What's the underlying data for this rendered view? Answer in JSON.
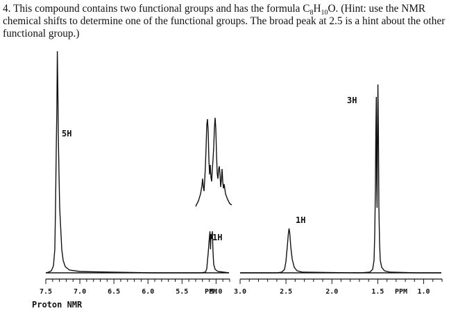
{
  "question": {
    "number": "4.",
    "text_before": "This compound contains two functional groups and has the formula C",
    "sub1": "8",
    "text_mid": "H",
    "sub2": "10",
    "text_after": "O.  (Hint: use the NMR chemical shifts to determine one of the functional groups.  The broad peak at 2.5 is a hint about the other functional group.)"
  },
  "chart_data": [
    {
      "type": "line",
      "panel": "left",
      "xlim": [
        7.5,
        4.8
      ],
      "x_ticks": [
        {
          "x": 7.5,
          "label": "7.5"
        },
        {
          "x": 7.0,
          "label": "7.0"
        },
        {
          "x": 6.5,
          "label": "6.5"
        },
        {
          "x": 6.0,
          "label": "6.0"
        },
        {
          "x": 5.5,
          "label": "5.5"
        },
        {
          "x": 5.0,
          "label": "5.0"
        }
      ],
      "axis_unit": "PPM",
      "caption": "Proton NMR",
      "peaks": [
        {
          "shift": 7.25,
          "integration": "5H"
        },
        {
          "shift": 4.9,
          "integration": "1H"
        }
      ],
      "inset": "expanded multiplet of the 1H signal near 4.9 ppm"
    },
    {
      "type": "line",
      "panel": "right",
      "xlim": [
        3.0,
        0.8
      ],
      "x_ticks": [
        {
          "x": 3.0,
          "label": "3.0"
        },
        {
          "x": 2.5,
          "label": "2.5"
        },
        {
          "x": 2.0,
          "label": "2.0"
        },
        {
          "x": 1.5,
          "label": "1.5"
        },
        {
          "x": 1.0,
          "label": "1.0"
        }
      ],
      "axis_unit": "PPM",
      "peaks": [
        {
          "shift": 2.5,
          "integration": "1H",
          "shape": "broad"
        },
        {
          "shift": 1.5,
          "integration": "3H",
          "shape": "doublet"
        }
      ]
    }
  ]
}
